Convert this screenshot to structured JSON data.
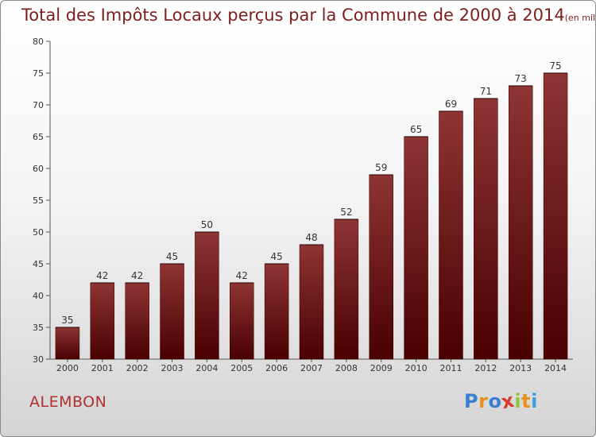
{
  "title": "Total des Impôts Locaux perçus par la Commune de 2000 à 2014",
  "subtitle": "(en milliers d'€)",
  "commune": "ALEMBON",
  "logo": {
    "letters": [
      "P",
      "r",
      "o",
      "x",
      "i",
      "t",
      "i"
    ],
    "colors": [
      "#3a7fd0",
      "#e8901c",
      "#3a7fd0",
      "#d83a2a",
      "#8cc63e",
      "#e8901c",
      "#3a9fd8"
    ]
  },
  "chart_data": {
    "type": "bar",
    "categories": [
      "2000",
      "2001",
      "2002",
      "2003",
      "2004",
      "2005",
      "2006",
      "2007",
      "2008",
      "2009",
      "2010",
      "2011",
      "2012",
      "2013",
      "2014"
    ],
    "values": [
      35,
      42,
      42,
      45,
      50,
      42,
      45,
      48,
      52,
      59,
      65,
      69,
      71,
      73,
      75
    ],
    "ylim": [
      30,
      80
    ],
    "yticks": [
      30,
      35,
      40,
      45,
      50,
      55,
      60,
      65,
      70,
      75,
      80
    ],
    "grid": false,
    "bar_color": "#7a1c1c"
  }
}
